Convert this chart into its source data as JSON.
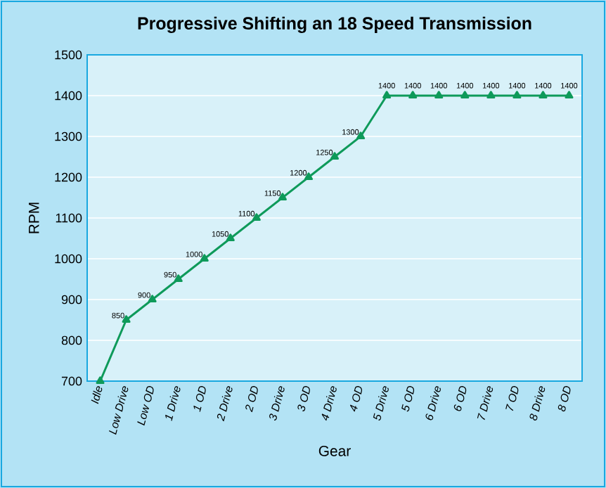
{
  "chart_data": {
    "type": "line",
    "title": "Progressive Shifting an 18 Speed Transmission",
    "xlabel": "Gear",
    "ylabel": "RPM",
    "categories": [
      "Idle",
      "Low Drive",
      "Low OD",
      "1 Drive",
      "1 OD",
      "2 Drive",
      "2 OD",
      "3 Drive",
      "3 OD",
      "4 Drive",
      "4 OD",
      "5 Drive",
      "5 OD",
      "6 Drive",
      "6 OD",
      "7 Drive",
      "7 OD",
      "8 Drive",
      "8 OD"
    ],
    "series": [
      {
        "color": "#0e9a5a",
        "values": [
          700,
          850,
          900,
          950,
          1000,
          1050,
          1100,
          1150,
          1200,
          1250,
          1300,
          1400,
          1400,
          1400,
          1400,
          1400,
          1400,
          1400,
          1400
        ],
        "value_labels": [
          null,
          "850",
          "900",
          "950",
          "1000",
          "1050",
          "1100",
          "1150",
          "1200",
          "1250",
          "1300",
          "1400",
          "1400",
          "1400",
          "1400",
          "1400",
          "1400",
          "1400",
          "1400"
        ]
      }
    ],
    "ylim": [
      700,
      1500
    ],
    "yticks": [
      700,
      800,
      900,
      1000,
      1100,
      1200,
      1300,
      1400,
      1500
    ],
    "grid": "y",
    "marker": "triangle",
    "line_style": "solid"
  }
}
